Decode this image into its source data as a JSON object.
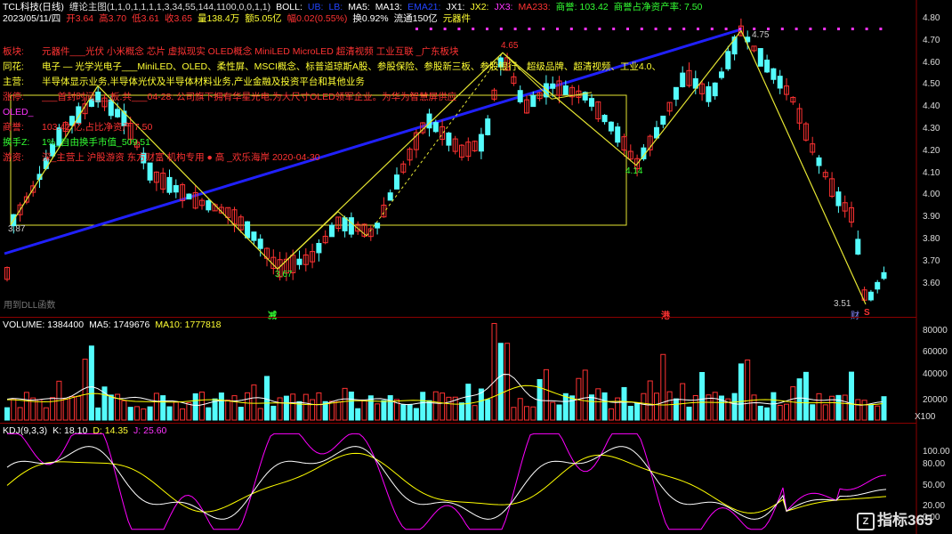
{
  "header": {
    "title": "TCL科技(日线)",
    "indicator": "缠论主图(1,1,0,1,1,1,1,3,34,55,144,1100,0,0,1,1)",
    "boll": "BOLL:",
    "up": "UB:",
    "lb": "LB:",
    "ma5": "MA5:",
    "ma13": "MA13:",
    "ema21": "EMA21:",
    "jx1": "JX1:",
    "jx2": "JX2:",
    "jx3": "JX3:",
    "ma233": "MA233:",
    "goodwill": "商誉: 103.42",
    "goodwill_ratio": "商誉占净资产率: 7.50"
  },
  "ohlc": {
    "date": "2023/05/11/四",
    "open": "开3.64",
    "high": "高3.70",
    "low": "低3.61",
    "close": "收3.65",
    "volume": "量138.4万",
    "amount": "额5.05亿",
    "change": "幅0.02(0.55%)",
    "turnover": "换0.92%",
    "float": "流通150亿",
    "sector": "元器件"
  },
  "info_rows": [
    {
      "label": "板块:",
      "text": "元器件___光伏 小米概念 芯片 虚拟现实 OLED概念 MiniLED MicroLED 超清视频 工业互联 _广东板块",
      "color": "#ff3333"
    },
    {
      "label": "同花:",
      "text": "电子 — 光学光电子___MiniLED、OLED、柔性屏、MSCI概念、标普道琼斯A股、参股保险、参股新三板、参股银行、超级品牌、超清视频、工业4.0、",
      "color": "#ffff33"
    },
    {
      "label": "主营:",
      "text": "半导体显示业务,半导体光伏及半导体材料业务,产业金融及投资平台和其他业务",
      "color": "#ffff33"
    },
    {
      "label": "涨停:",
      "text": "___首封时间___板:共___04-28: 公司旗下拥有华星光电,为大尺寸OLED领军企业。为华为智慧屏供应",
      "color": "#ff3333"
    },
    {
      "label": "OLED_",
      "text": "",
      "color": "#ff33ff"
    },
    {
      "label": "商誉:",
      "text": "103.42 亿,占比净资产 7.50",
      "color": "#ff3333"
    },
    {
      "label": "换手Z:",
      "text": "1%_自由换手市值_509.51",
      "color": "#33ff33"
    },
    {
      "label": "游资:",
      "text": "深_主营上 沪股游资 东方财富 机构专用 ● 高 _欢乐海岸 2020-04-30",
      "color": "#ff3333"
    }
  ],
  "price_axis": [
    "4.80",
    "4.70",
    "4.60",
    "4.50",
    "4.40",
    "4.30",
    "4.20",
    "4.10",
    "4.00",
    "3.90",
    "3.80",
    "3.70",
    "3.60"
  ],
  "annotations": {
    "p1": "3.87",
    "p2": "3.67",
    "p3": "4.65",
    "p4": "4.14",
    "p5": "4.75",
    "p6": "3.51",
    "dll": "用到DLL函数",
    "mark_jian": "减",
    "mark_gang": "港",
    "mark_cai": "财",
    "mark_s": "S"
  },
  "volume_panel": {
    "label": "VOLUME: 1384400",
    "ma5": "MA5: 1749676",
    "ma10": "MA10: 1777818",
    "axis": [
      "80000",
      "60000",
      "40000",
      "20000"
    ],
    "unit": "X100"
  },
  "kdj_panel": {
    "label": "KDJ(9,3,3)",
    "k": "K: 18.10",
    "d": "D: 14.35",
    "j": "J: 25.60",
    "axis": [
      "100.00",
      "80.00",
      "50.00",
      "20.00",
      "0.00"
    ]
  },
  "watermark": "指标365",
  "colors": {
    "up": "#ff3232",
    "down": "#54fcfc",
    "ma5": "#ffffff",
    "ma10": "#ffff00",
    "trend": "#2020ff",
    "zigzag": "#e6e632",
    "kdj_j": "#ff00ff"
  }
}
